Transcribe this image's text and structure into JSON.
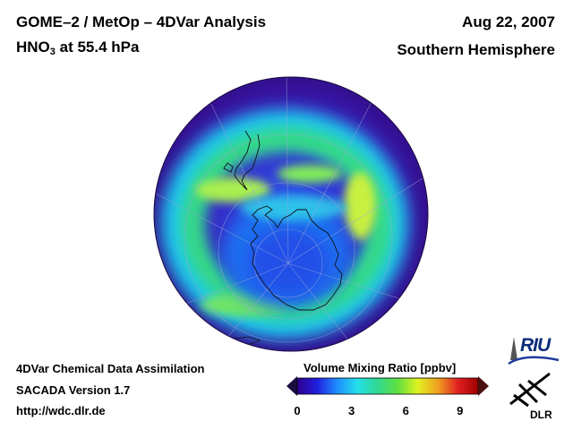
{
  "header": {
    "title_line1": "GOME–2 / MetOp – 4DVar Analysis",
    "species": "HNO",
    "species_subscript": "3",
    "level_text": " at 55.4 hPa",
    "date": "Aug 22, 2007",
    "region": "Southern Hemisphere"
  },
  "footer": {
    "line1": "4DVar Chemical Data Assimilation",
    "line2": "SACADA Version 1.7",
    "line3": "http://wdc.dlr.de"
  },
  "colorbar": {
    "title": "Volume Mixing Ratio [ppbv]",
    "ticks": [
      "0",
      "3",
      "6",
      "9"
    ],
    "tick_values": [
      0,
      3,
      6,
      9
    ],
    "range": [
      0,
      10
    ],
    "colors": [
      "#300090",
      "#2020e0",
      "#1f8fff",
      "#23e0e8",
      "#30d890",
      "#60e040",
      "#e0f020",
      "#f0a020",
      "#e02020",
      "#a00000"
    ]
  },
  "logos": {
    "riu": "RIU",
    "dlr": "DLR"
  },
  "map": {
    "projection": "orthographic-south-polar",
    "field": "HNO3 volume mixing ratio"
  }
}
